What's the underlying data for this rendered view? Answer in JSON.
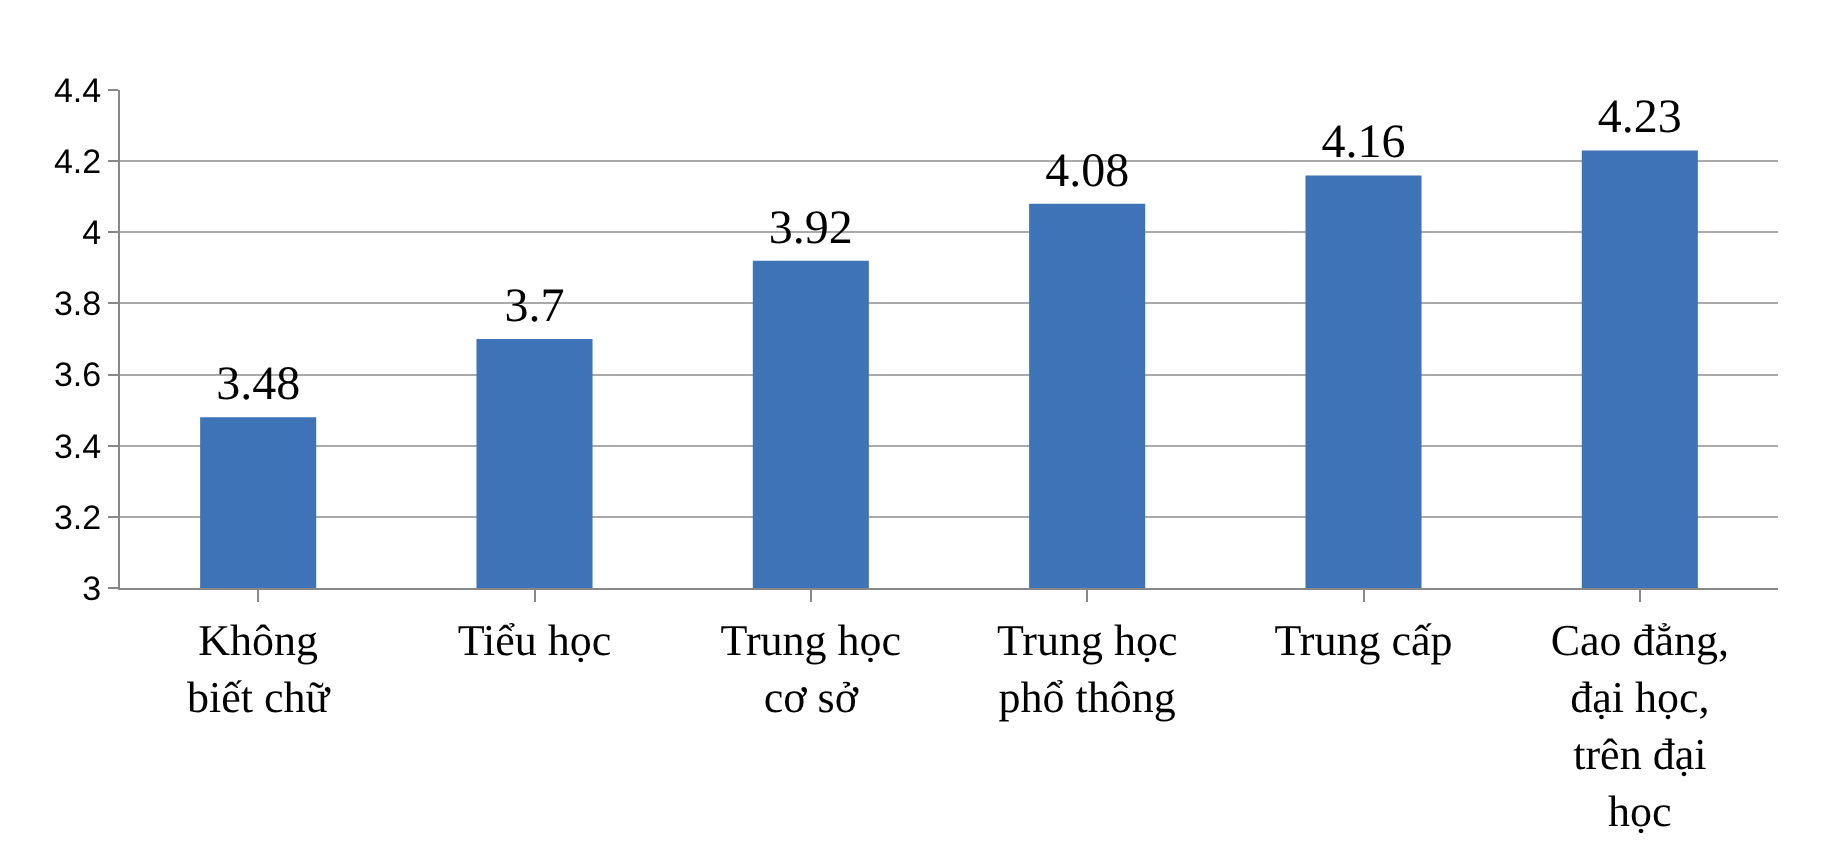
{
  "chart_data": {
    "type": "bar",
    "categories": [
      "Không biết chữ",
      "Tiểu học",
      "Trung học cơ sở",
      "Trung học phổ thông",
      "Trung cấp",
      "Cao đẳng, đại học, trên đại học"
    ],
    "values": [
      3.48,
      3.7,
      3.92,
      4.08,
      4.16,
      4.23
    ],
    "color": "#3f73b8",
    "ylim": [
      3,
      4.4
    ],
    "yticks": [
      3,
      3.2,
      3.4,
      3.6,
      3.8,
      4,
      4.2,
      4.4
    ],
    "grid": "y",
    "data_labels": true,
    "legend": false
  }
}
